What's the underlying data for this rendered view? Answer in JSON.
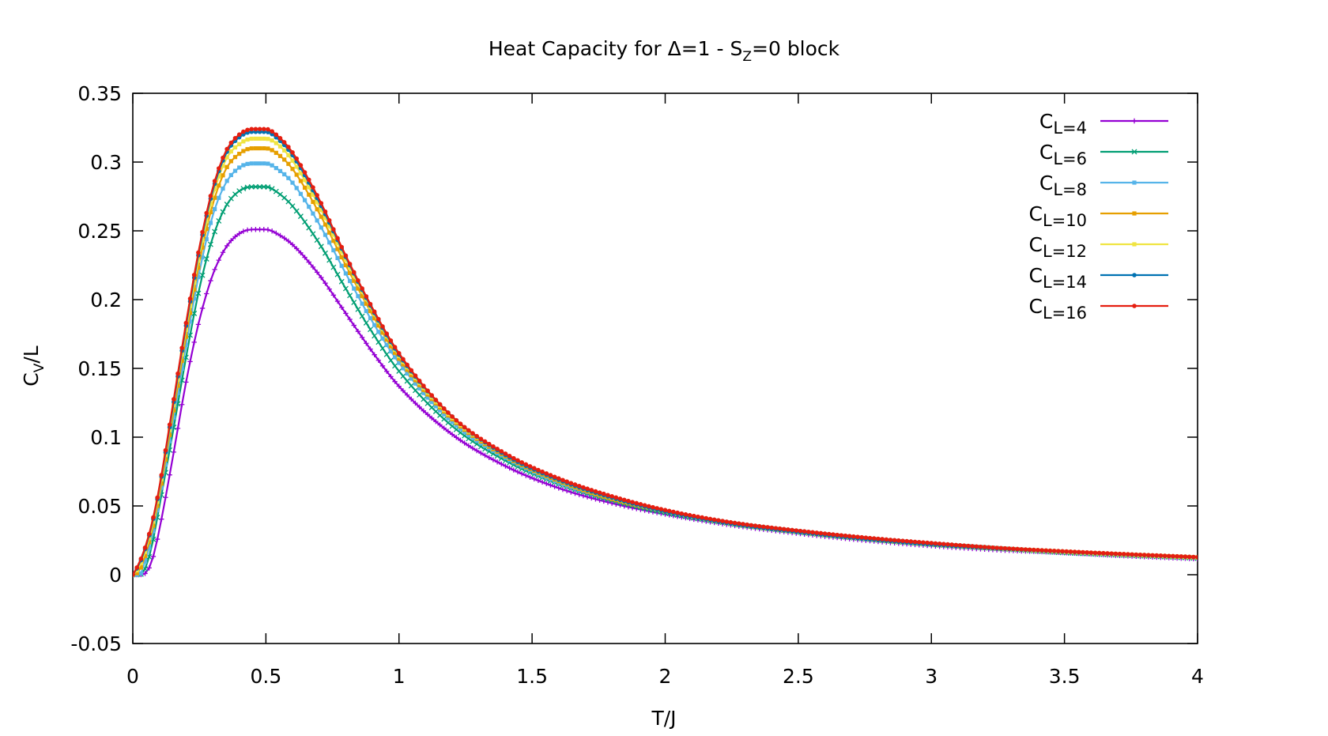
{
  "chart_data": {
    "type": "line",
    "title": {
      "main": "Heat Capacity for Δ=1 - S",
      "sub": "Z",
      "tail": "=0 block"
    },
    "xlabel": "T/J",
    "ylabel": {
      "main": "C",
      "sub": "V",
      "tail": "/L"
    },
    "xlim": [
      0,
      4
    ],
    "ylim": [
      -0.05,
      0.35
    ],
    "xticks": [
      0,
      0.5,
      1,
      1.5,
      2,
      2.5,
      3,
      3.5,
      4
    ],
    "xtick_labels": [
      "0",
      "0.5",
      "1",
      "1.5",
      "2",
      "2.5",
      "3",
      "3.5",
      "4"
    ],
    "yticks": [
      -0.05,
      0,
      0.05,
      0.1,
      0.15,
      0.2,
      0.25,
      0.3,
      0.35
    ],
    "ytick_labels": [
      "-0.05",
      "0",
      "0.05",
      "0.1",
      "0.15",
      "0.2",
      "0.25",
      "0.3",
      "0.35"
    ],
    "grid": false,
    "legend_position": "top-right",
    "x": [
      0.0,
      0.025,
      0.05,
      0.075,
      0.1,
      0.15,
      0.2,
      0.25,
      0.3,
      0.35,
      0.4,
      0.45,
      0.5,
      0.55,
      0.6,
      0.7,
      0.8,
      0.9,
      1.0,
      1.2,
      1.4,
      1.6,
      1.8,
      2.0,
      2.25,
      2.5,
      2.75,
      3.0,
      3.25,
      3.5,
      3.75,
      4.0
    ],
    "series": [
      {
        "name": "C",
        "sub": "L=4",
        "color": "#9400d3",
        "marker": "plus",
        "values": [
          0.0,
          0.0,
          0.0015,
          0.012,
          0.033,
          0.085,
          0.14,
          0.185,
          0.218,
          0.238,
          0.248,
          0.251,
          0.251,
          0.247,
          0.24,
          0.218,
          0.19,
          0.162,
          0.137,
          0.102,
          0.079,
          0.063,
          0.052,
          0.044,
          0.036,
          0.03,
          0.025,
          0.021,
          0.018,
          0.016,
          0.0135,
          0.0115
        ]
      },
      {
        "name": "C",
        "sub": "L=6",
        "color": "#009e73",
        "marker": "cross",
        "values": [
          0.0,
          0.0,
          0.006,
          0.024,
          0.05,
          0.103,
          0.158,
          0.208,
          0.245,
          0.268,
          0.279,
          0.282,
          0.282,
          0.277,
          0.268,
          0.241,
          0.208,
          0.176,
          0.148,
          0.108,
          0.083,
          0.066,
          0.054,
          0.045,
          0.037,
          0.031,
          0.026,
          0.022,
          0.019,
          0.016,
          0.014,
          0.012
        ]
      },
      {
        "name": "C",
        "sub": "L=8",
        "color": "#56b4e9",
        "marker": "square",
        "values": [
          0.0,
          0.0,
          0.012,
          0.03,
          0.055,
          0.11,
          0.167,
          0.22,
          0.261,
          0.285,
          0.296,
          0.299,
          0.299,
          0.294,
          0.285,
          0.255,
          0.219,
          0.184,
          0.154,
          0.111,
          0.085,
          0.067,
          0.055,
          0.046,
          0.037,
          0.031,
          0.026,
          0.022,
          0.019,
          0.0165,
          0.0143,
          0.0124
        ]
      },
      {
        "name": "C",
        "sub": "L=10",
        "color": "#e69f00",
        "marker": "square",
        "values": [
          0.0,
          0.003,
          0.016,
          0.034,
          0.058,
          0.115,
          0.173,
          0.227,
          0.269,
          0.295,
          0.306,
          0.31,
          0.31,
          0.305,
          0.295,
          0.263,
          0.225,
          0.189,
          0.157,
          0.113,
          0.086,
          0.068,
          0.055,
          0.046,
          0.037,
          0.031,
          0.026,
          0.022,
          0.019,
          0.0166,
          0.0144,
          0.0125
        ]
      },
      {
        "name": "C",
        "sub": "L=12",
        "color": "#f0e442",
        "marker": "square",
        "values": [
          0.0,
          0.006,
          0.019,
          0.037,
          0.061,
          0.119,
          0.178,
          0.232,
          0.275,
          0.302,
          0.313,
          0.317,
          0.317,
          0.312,
          0.301,
          0.268,
          0.229,
          0.192,
          0.159,
          0.114,
          0.087,
          0.069,
          0.056,
          0.046,
          0.037,
          0.031,
          0.026,
          0.022,
          0.019,
          0.0167,
          0.0145,
          0.0126
        ]
      },
      {
        "name": "C",
        "sub": "L=14",
        "color": "#0072b2",
        "marker": "circle",
        "values": [
          0.0,
          0.008,
          0.021,
          0.039,
          0.063,
          0.121,
          0.181,
          0.236,
          0.279,
          0.306,
          0.318,
          0.322,
          0.322,
          0.316,
          0.305,
          0.271,
          0.231,
          0.193,
          0.16,
          0.115,
          0.087,
          0.069,
          0.056,
          0.046,
          0.037,
          0.031,
          0.026,
          0.022,
          0.019,
          0.0168,
          0.0146,
          0.0127
        ]
      },
      {
        "name": "C",
        "sub": "L=16",
        "color": "#e51e10",
        "marker": "circle",
        "values": [
          0.0,
          0.009,
          0.022,
          0.04,
          0.064,
          0.123,
          0.183,
          0.238,
          0.281,
          0.308,
          0.32,
          0.324,
          0.324,
          0.318,
          0.307,
          0.273,
          0.232,
          0.194,
          0.161,
          0.115,
          0.088,
          0.07,
          0.057,
          0.047,
          0.038,
          0.032,
          0.027,
          0.023,
          0.0195,
          0.017,
          0.0148,
          0.0128
        ]
      }
    ]
  }
}
